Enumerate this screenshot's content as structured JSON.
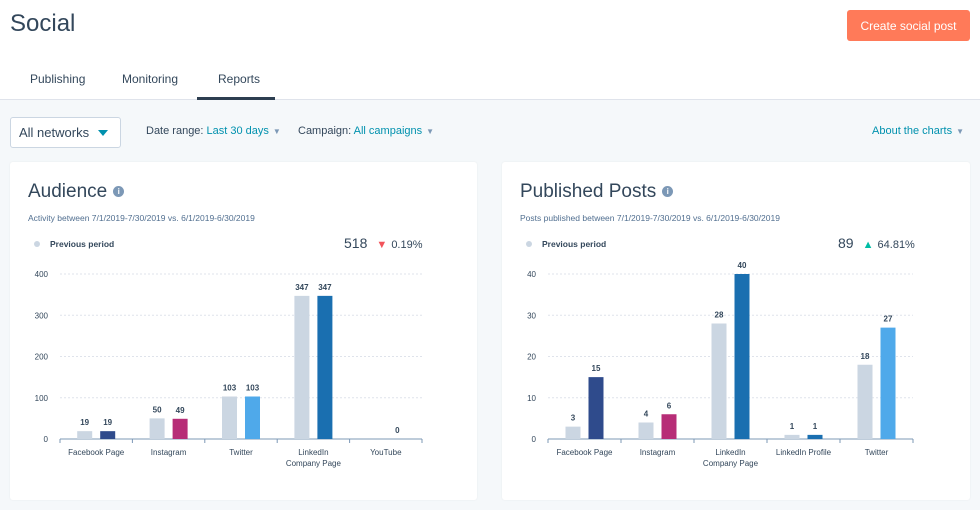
{
  "header": {
    "title": "Social",
    "create_button": "Create social post"
  },
  "tabs": [
    {
      "label": "Publishing"
    },
    {
      "label": "Monitoring"
    },
    {
      "label": "Reports",
      "active": true
    }
  ],
  "filters": {
    "network": "All networks",
    "date_label": "Date range:",
    "date_value": "Last 30 days",
    "campaign_label": "Campaign:",
    "campaign_value": "All campaigns",
    "about": "About the charts"
  },
  "colors": {
    "accent": "#ff7a59",
    "link": "#0091ae",
    "previous": "#cbd6e2",
    "up": "#00bda5",
    "down": "#f2545b"
  },
  "audience": {
    "title": "Audience",
    "subtitle": "Activity between 7/1/2019-7/30/2019 vs. 6/1/2019-6/30/2019",
    "legend": "Previous period",
    "total": "518",
    "change": "0.19%",
    "direction": "down"
  },
  "posts": {
    "title": "Published Posts",
    "subtitle": "Posts published between 7/1/2019-7/30/2019 vs. 6/1/2019-6/30/2019",
    "legend": "Previous period",
    "total": "89",
    "change": "64.81%",
    "direction": "up"
  },
  "chart_data": [
    {
      "type": "bar",
      "title": "Audience",
      "ylim": [
        0,
        400
      ],
      "yticks": [
        0,
        100,
        200,
        300,
        400
      ],
      "grid": true,
      "categories": [
        "Facebook Page",
        "Instagram",
        "Twitter",
        "LinkedIn Company Page",
        "YouTube"
      ],
      "series": [
        {
          "name": "Previous period",
          "values": [
            19,
            50,
            103,
            347,
            null
          ],
          "color": "#cbd6e2"
        },
        {
          "values": [
            19,
            49,
            103,
            347,
            0
          ],
          "colors": [
            "#2f4b8c",
            "#b72d77",
            "#4fa9ea",
            "#1a6fb0",
            "#1a6fb0"
          ]
        }
      ]
    },
    {
      "type": "bar",
      "title": "Published Posts",
      "ylim": [
        0,
        40
      ],
      "yticks": [
        0,
        10,
        20,
        30,
        40
      ],
      "grid": true,
      "categories": [
        "Facebook Page",
        "Instagram",
        "LinkedIn Company Page",
        "LinkedIn Profile",
        "Twitter"
      ],
      "series": [
        {
          "name": "Previous period",
          "values": [
            3,
            4,
            28,
            1,
            18
          ],
          "color": "#cbd6e2"
        },
        {
          "values": [
            15,
            6,
            40,
            1,
            27
          ],
          "colors": [
            "#2f4b8c",
            "#b72d77",
            "#1a6fb0",
            "#1a6fb0",
            "#4fa9ea"
          ]
        }
      ]
    }
  ]
}
